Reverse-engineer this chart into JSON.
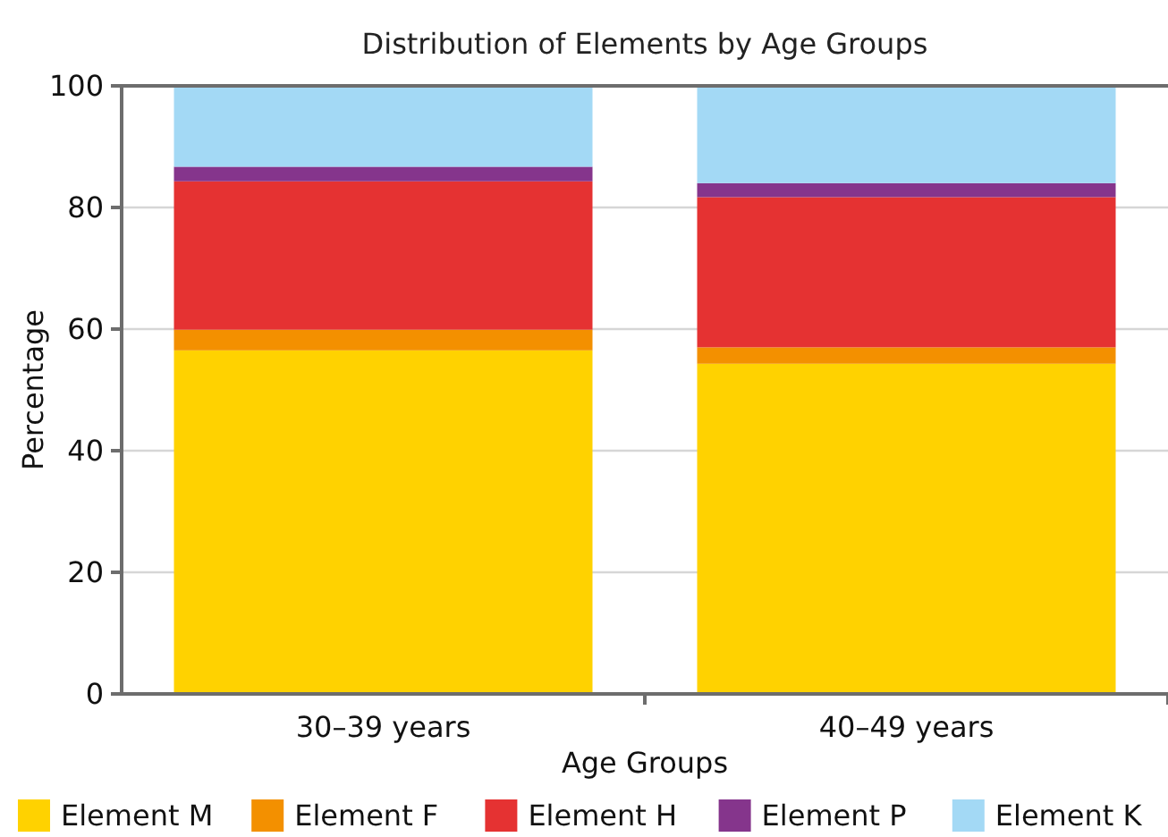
{
  "chart_data": {
    "type": "bar",
    "stacked": true,
    "title": "Distribution of Elements by Age Groups",
    "xlabel": "Age Groups",
    "ylabel": "Percentage",
    "categories": [
      "30–39 years",
      "40–49 years"
    ],
    "series": [
      {
        "name": "Element M",
        "color": "#ffd200",
        "values": [
          56.5,
          54.3
        ]
      },
      {
        "name": "Element F",
        "color": "#f39000",
        "values": [
          3.4,
          2.7
        ]
      },
      {
        "name": "Element H",
        "color": "#e53232",
        "values": [
          24.4,
          24.7
        ]
      },
      {
        "name": "Element P",
        "color": "#85358c",
        "values": [
          2.4,
          2.3
        ]
      },
      {
        "name": "Element K",
        "color": "#a3d9f5",
        "values": [
          13.3,
          16.0
        ]
      }
    ],
    "ylim": [
      0,
      100
    ],
    "yticks": [
      0,
      20,
      40,
      60,
      80,
      100
    ],
    "grid": "y",
    "legend": "bottom"
  }
}
